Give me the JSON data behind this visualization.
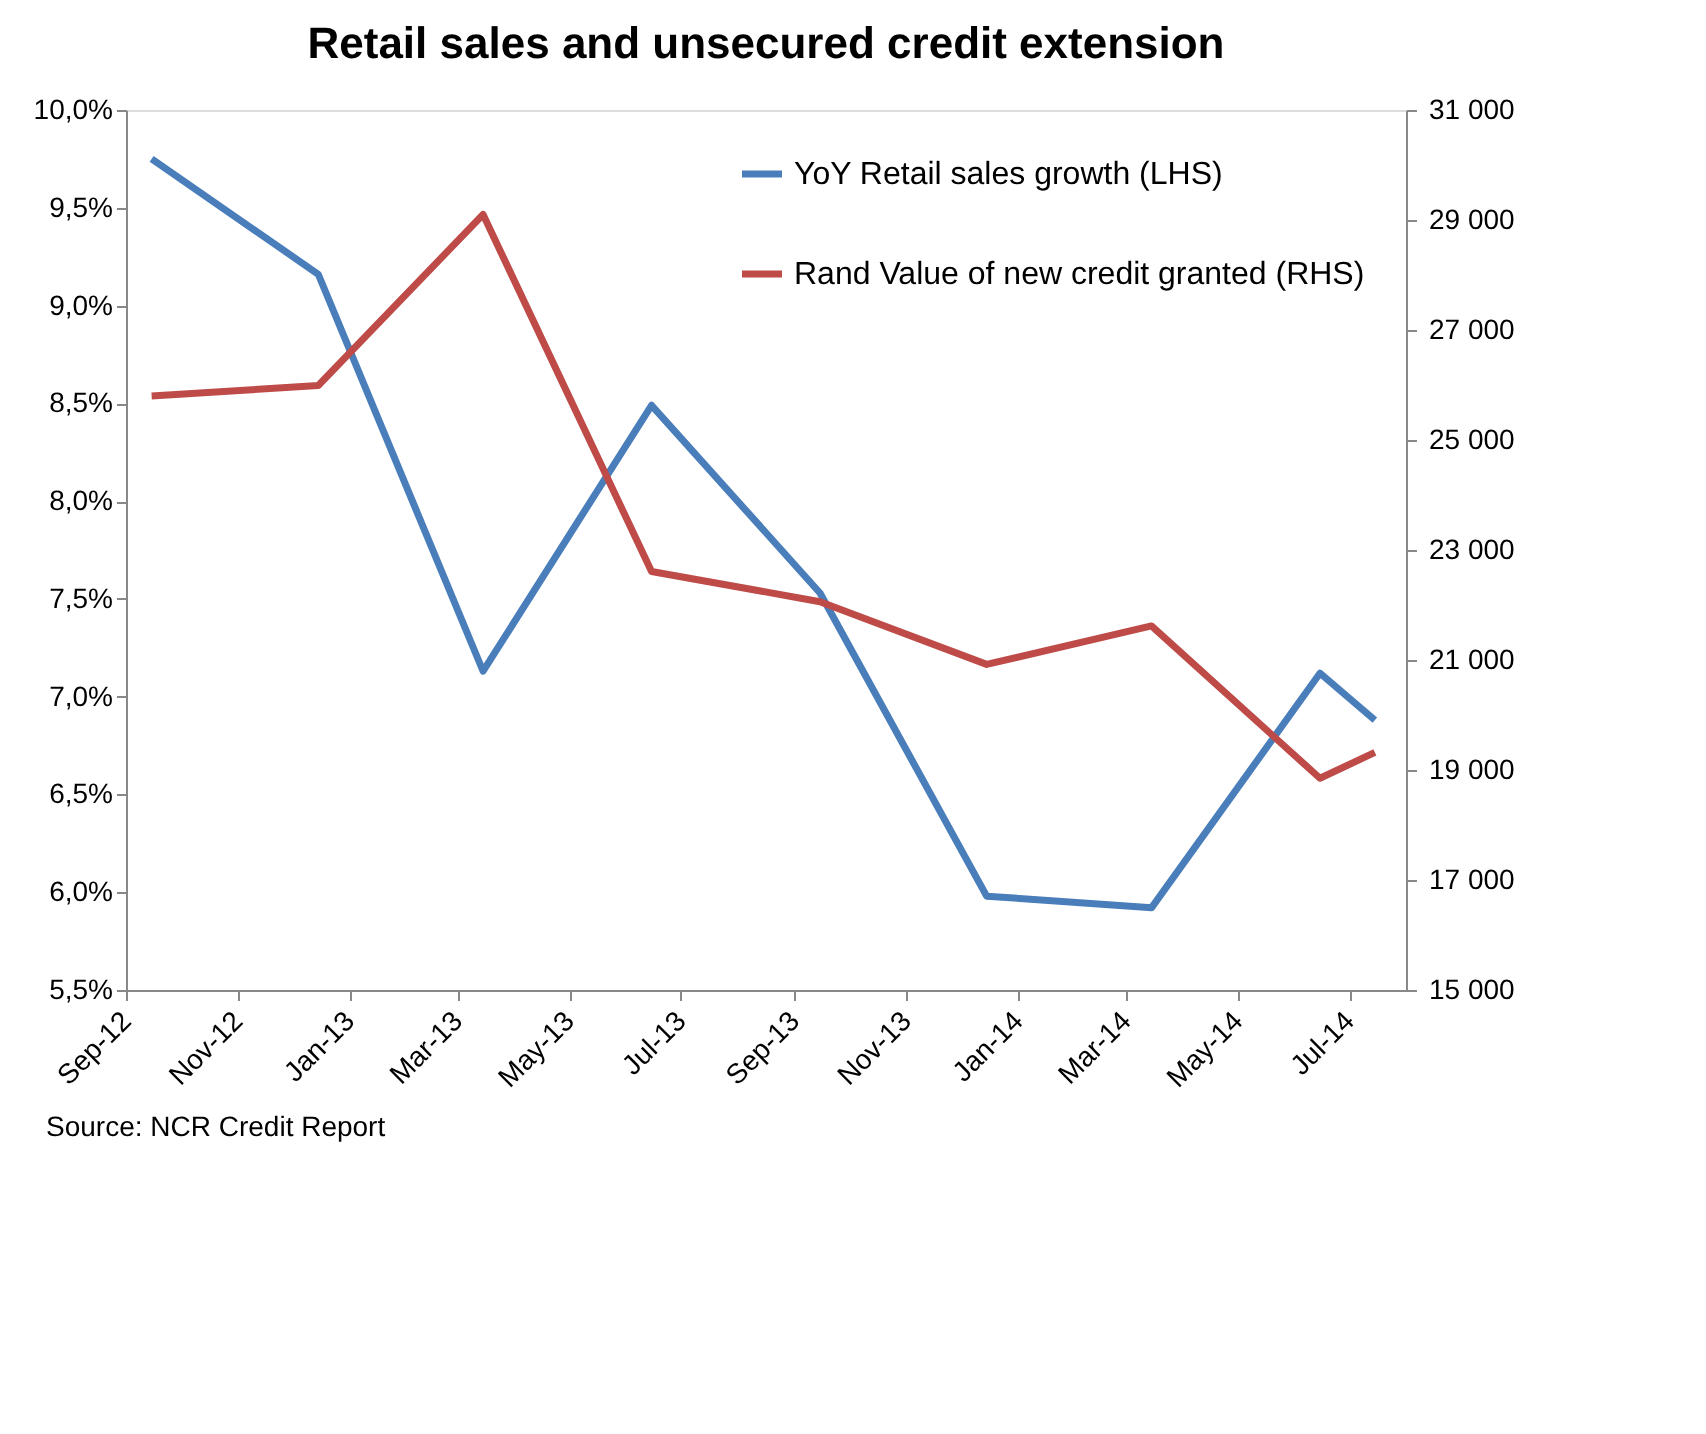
{
  "chart_data": {
    "type": "line",
    "title": "Retail sales and unsecured credit extension",
    "x": [
      "2012-09-15",
      "2012-12-15",
      "2013-03-15",
      "2013-06-15",
      "2013-09-15",
      "2013-12-15",
      "2014-03-15",
      "2014-06-15",
      "2014-07-15"
    ],
    "series": [
      {
        "name": "YoY Retail sales growth (LHS)",
        "color": "#4a7ebb",
        "values": [
          9.75,
          9.16,
          7.13,
          8.49,
          7.53,
          5.98,
          5.92,
          7.12,
          6.88
        ]
      },
      {
        "name": "Rand Value of new credit granted (RHS)",
        "color": "#be4b48",
        "axis": "y2",
        "values": [
          25800,
          25990,
          29100,
          22610,
          22060,
          20920,
          21620,
          18850,
          19320
        ]
      }
    ],
    "xlim": [
      "2012-09-01",
      "2014-08-01"
    ],
    "xticks": [
      {
        "value": "2012-09-01",
        "label": "Sep-12"
      },
      {
        "value": "2012-11-01",
        "label": "Nov-12"
      },
      {
        "value": "2013-01-01",
        "label": "Jan-13"
      },
      {
        "value": "2013-03-01",
        "label": "Mar-13"
      },
      {
        "value": "2013-05-01",
        "label": "May-13"
      },
      {
        "value": "2013-07-01",
        "label": "Jul-13"
      },
      {
        "value": "2013-09-01",
        "label": "Sep-13"
      },
      {
        "value": "2013-11-01",
        "label": "Nov-13"
      },
      {
        "value": "2014-01-01",
        "label": "Jan-14"
      },
      {
        "value": "2014-03-01",
        "label": "Mar-14"
      },
      {
        "value": "2014-05-01",
        "label": "May-14"
      },
      {
        "value": "2014-07-01",
        "label": "Jul-14"
      }
    ],
    "ylim": [
      5.5,
      10.0
    ],
    "yticks": [
      {
        "value": 5.5,
        "label": "5,5%"
      },
      {
        "value": 6.0,
        "label": "6,0%"
      },
      {
        "value": 6.5,
        "label": "6,5%"
      },
      {
        "value": 7.0,
        "label": "7,0%"
      },
      {
        "value": 7.5,
        "label": "7,5%"
      },
      {
        "value": 8.0,
        "label": "8,0%"
      },
      {
        "value": 8.5,
        "label": "8,5%"
      },
      {
        "value": 9.0,
        "label": "9,0%"
      },
      {
        "value": 9.5,
        "label": "9,5%"
      },
      {
        "value": 10.0,
        "label": "10,0%"
      }
    ],
    "y2lim": [
      15000,
      31000
    ],
    "y2ticks": [
      {
        "value": 15000,
        "label": "15 000"
      },
      {
        "value": 17000,
        "label": "17 000"
      },
      {
        "value": 19000,
        "label": "19 000"
      },
      {
        "value": 21000,
        "label": "21 000"
      },
      {
        "value": 23000,
        "label": "23 000"
      },
      {
        "value": 25000,
        "label": "25 000"
      },
      {
        "value": 27000,
        "label": "27 000"
      },
      {
        "value": 29000,
        "label": "29 000"
      },
      {
        "value": 31000,
        "label": "31 000"
      }
    ],
    "grid": false,
    "legend": "top right",
    "marker": "none",
    "line_style": "solid",
    "annotations": [
      "Source: NCR Credit Report"
    ]
  }
}
